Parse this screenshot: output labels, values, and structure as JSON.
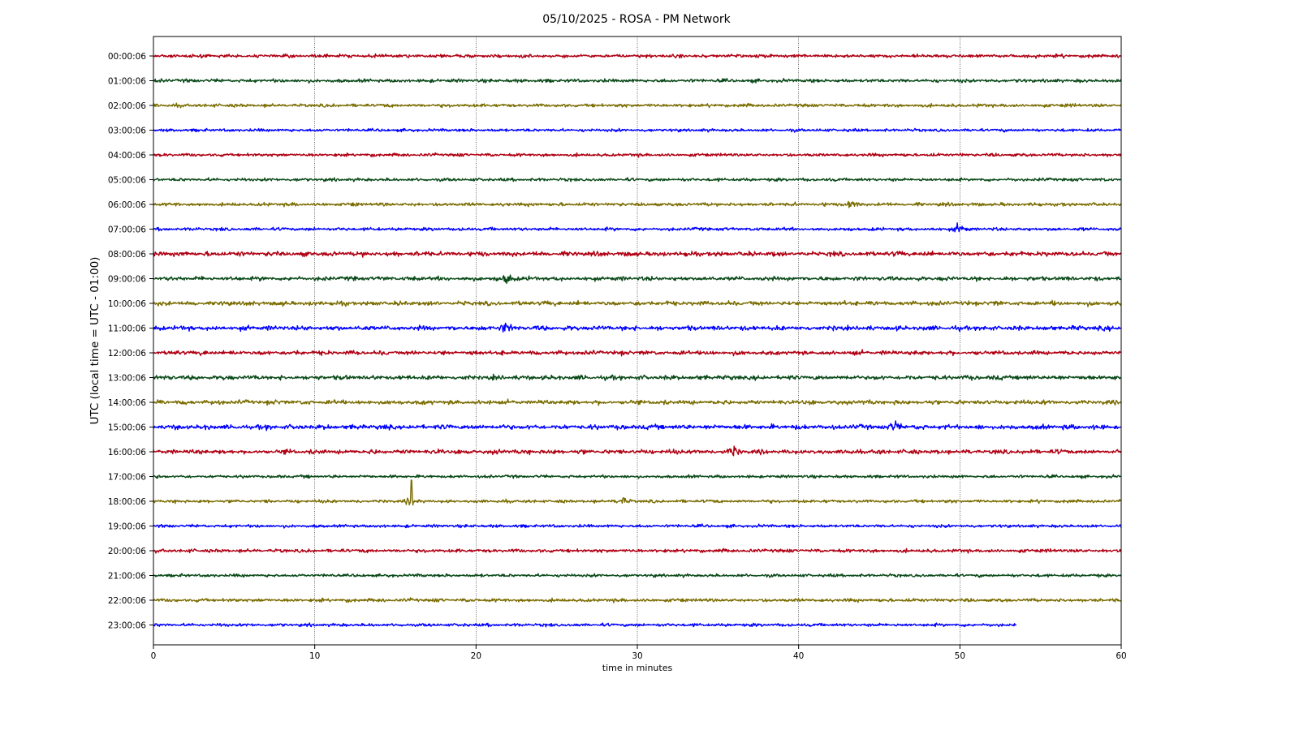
{
  "chart_data": {
    "type": "line",
    "title": "05/10/2025 - ROSA - PM Network",
    "xlabel": "time in minutes",
    "ylabel": "UTC (local time = UTC - 01:00)",
    "xlim": [
      0,
      60
    ],
    "xticks": [
      "0",
      "10",
      "20",
      "30",
      "40",
      "50",
      "60"
    ],
    "grid": "vertical dotted at x ticks",
    "row_labels": [
      "00:00:06",
      "01:00:06",
      "02:00:06",
      "03:00:06",
      "04:00:06",
      "05:00:06",
      "06:00:06",
      "07:00:06",
      "08:00:06",
      "09:00:06",
      "10:00:06",
      "11:00:06",
      "12:00:06",
      "13:00:06",
      "14:00:06",
      "15:00:06",
      "16:00:06",
      "17:00:06",
      "18:00:06",
      "19:00:06",
      "20:00:06",
      "21:00:06",
      "22:00:06",
      "23:00:06"
    ],
    "series_colors": [
      "#b00013",
      "#0a4a18",
      "#7a6c00",
      "#0000ff"
    ],
    "last_row_end_minute": 53.5,
    "notable_events": [
      {
        "row": "06:00:06",
        "minute": 43.2
      },
      {
        "row": "07:00:06",
        "minute": 49.9
      },
      {
        "row": "09:00:06",
        "minute": 22.0
      },
      {
        "row": "11:00:06",
        "minute": 21.8
      },
      {
        "row": "15:00:06",
        "minute": 46.0
      },
      {
        "row": "16:00:06",
        "minute": 36.0
      },
      {
        "row": "18:00:06",
        "minute": 16.0
      },
      {
        "row": "18:00:06",
        "minute": 29.1
      }
    ]
  }
}
